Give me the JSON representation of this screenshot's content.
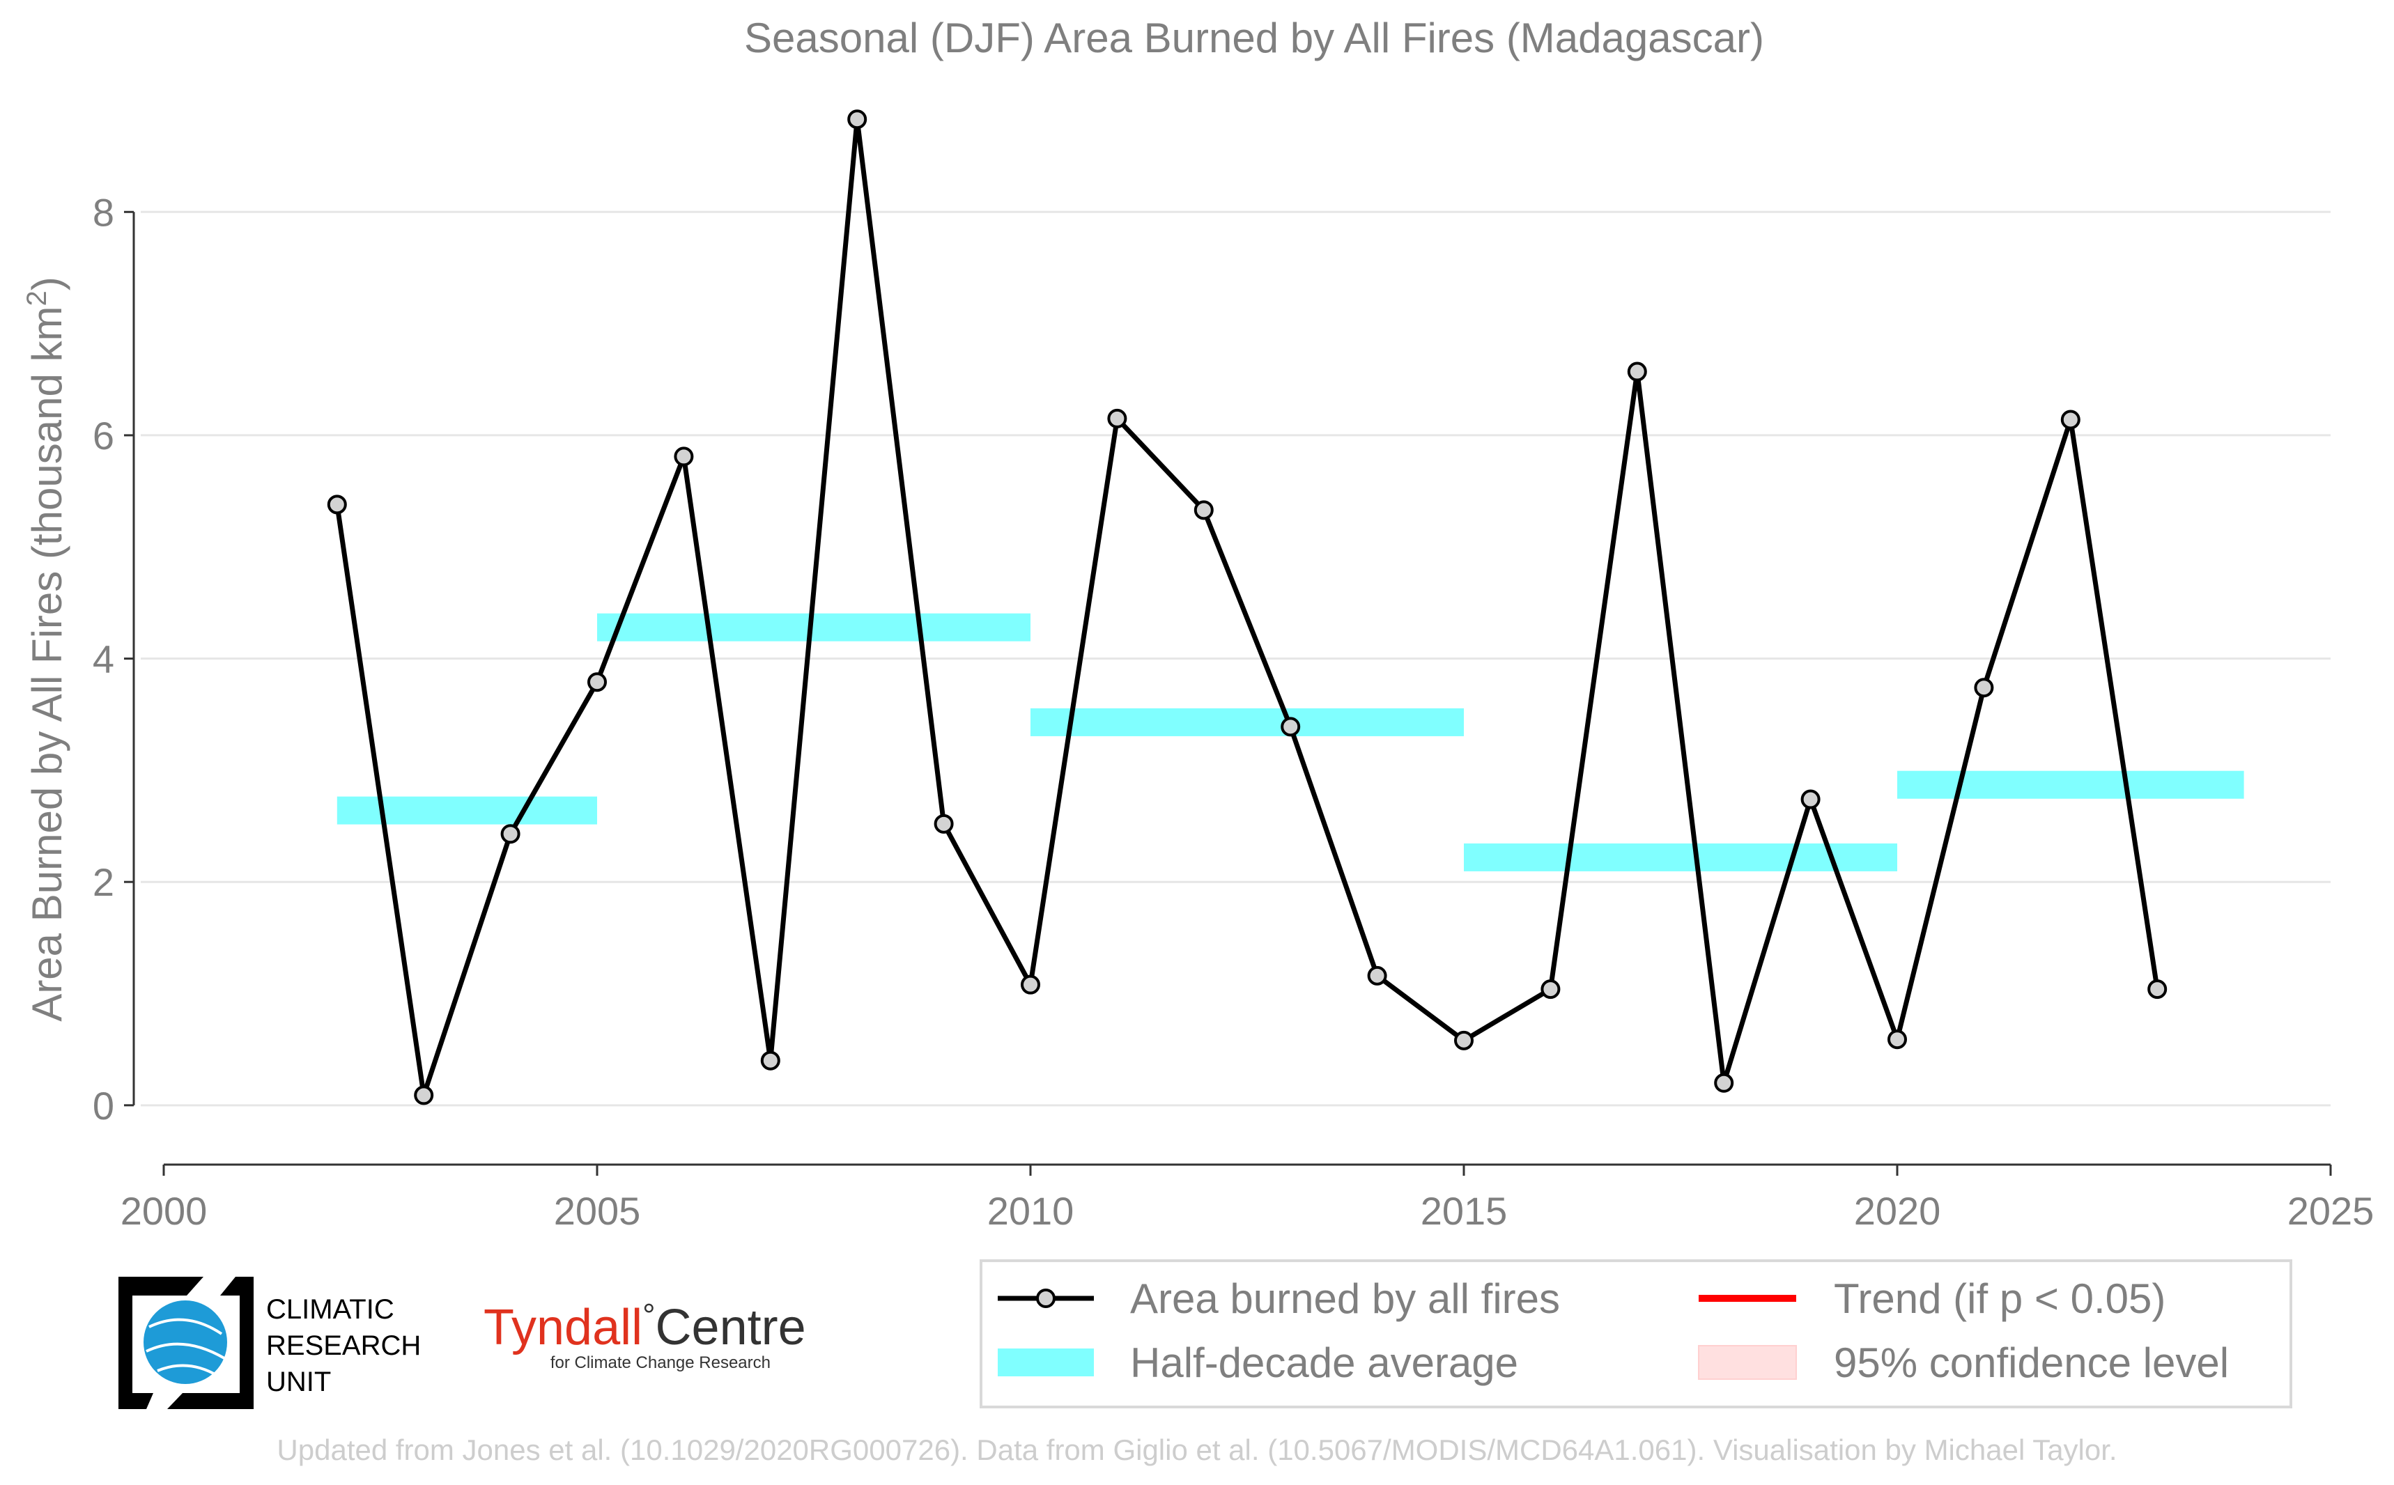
{
  "chart_data": {
    "type": "line",
    "title": "Seasonal (DJF) Area Burned by All Fires (Madagascar)",
    "ylabel": "Area Burned by All Fires (thousand km",
    "ylabel_sup": "2",
    "ylabel_close": ")",
    "xlim": [
      2000,
      2025
    ],
    "ylim": [
      -0.55,
      8.9
    ],
    "xticks": [
      2000,
      2005,
      2010,
      2015,
      2020,
      2025
    ],
    "yticks": [
      0,
      2,
      4,
      6,
      8
    ],
    "grid": true,
    "series": [
      {
        "name": "Area burned by all fires",
        "x": [
          2002,
          2003,
          2004,
          2005,
          2006,
          2007,
          2008,
          2009,
          2010,
          2011,
          2012,
          2013,
          2014,
          2015,
          2016,
          2017,
          2018,
          2019,
          2020,
          2021,
          2022,
          2023
        ],
        "y": [
          5.38,
          0.09,
          2.43,
          3.79,
          5.81,
          0.4,
          8.83,
          2.52,
          1.08,
          6.15,
          5.33,
          3.39,
          1.16,
          0.58,
          1.04,
          6.57,
          0.2,
          2.74,
          0.59,
          3.74,
          6.14,
          1.04
        ]
      }
    ],
    "half_decade_average": {
      "name": "Half-decade average",
      "segments": [
        {
          "x0": 2002,
          "x1": 2005,
          "y": 2.64
        },
        {
          "x0": 2005,
          "x1": 2010,
          "y": 4.28
        },
        {
          "x0": 2010,
          "x1": 2015,
          "y": 3.43
        },
        {
          "x0": 2015,
          "x1": 2020,
          "y": 2.22
        },
        {
          "x0": 2020,
          "x1": 2024,
          "y": 2.87
        }
      ]
    },
    "legend": {
      "placement": "bottom-right",
      "items": [
        {
          "key": "line",
          "label": "Area burned by all fires"
        },
        {
          "key": "trend",
          "label": "Trend (if p < 0.05)"
        },
        {
          "key": "band",
          "label": "Half-decade average"
        },
        {
          "key": "ci",
          "label": "95% confidence level"
        }
      ]
    },
    "colors": {
      "line": "#000000",
      "marker_fill": "#d3d3d3",
      "band": "#80ffff",
      "trend": "#ff0000",
      "ci": "#ffe0e0",
      "grid": "#e6e6e6",
      "text": "#7f7f7f"
    }
  },
  "logos": {
    "cru": {
      "line1": "CLIMATIC",
      "line2": "RESEARCH",
      "line3": "UNIT"
    },
    "tyndall": {
      "main": "Tyndall",
      "degree": "°",
      "centre": "Centre",
      "sub": "for Climate Change Research"
    }
  },
  "footer": "Updated from Jones et al. (10.1029/2020RG000726). Data from Giglio et al. (10.5067/MODIS/MCD64A1.061). Visualisation by Michael Taylor."
}
